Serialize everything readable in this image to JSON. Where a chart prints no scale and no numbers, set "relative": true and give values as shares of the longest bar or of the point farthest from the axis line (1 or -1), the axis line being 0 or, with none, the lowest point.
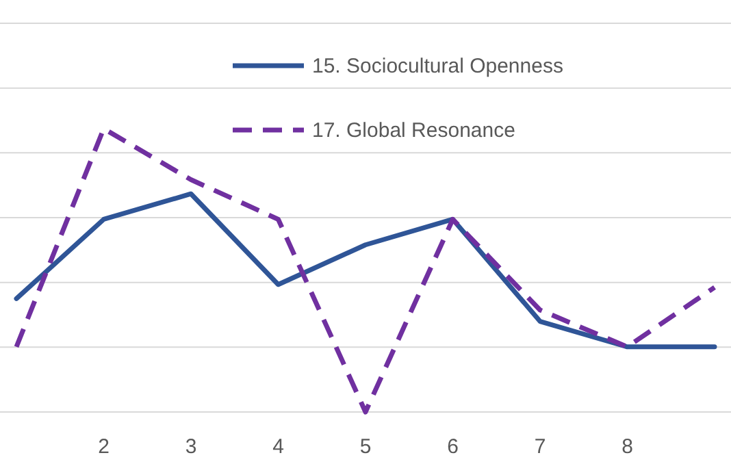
{
  "chart_data": {
    "type": "line",
    "relative": true,
    "categories": [
      null,
      "2",
      "3",
      "4",
      "5",
      "6",
      "7",
      "8",
      null
    ],
    "series": [
      {
        "name": "15. Sociocultural Openness",
        "color": "#2f5597",
        "line_style": "solid",
        "values": [
          0.4,
          0.68,
          0.77,
          0.45,
          0.59,
          0.68,
          0.32,
          0.23,
          0.23
        ]
      },
      {
        "name": "17. Global Resonance",
        "color": "#7030a0",
        "line_style": "dashed",
        "values": [
          0.23,
          1,
          0.82,
          0.68,
          0,
          0.68,
          0.36,
          0.23,
          0.44
        ]
      }
    ],
    "grid": true,
    "legend": "top",
    "marker": "none"
  }
}
